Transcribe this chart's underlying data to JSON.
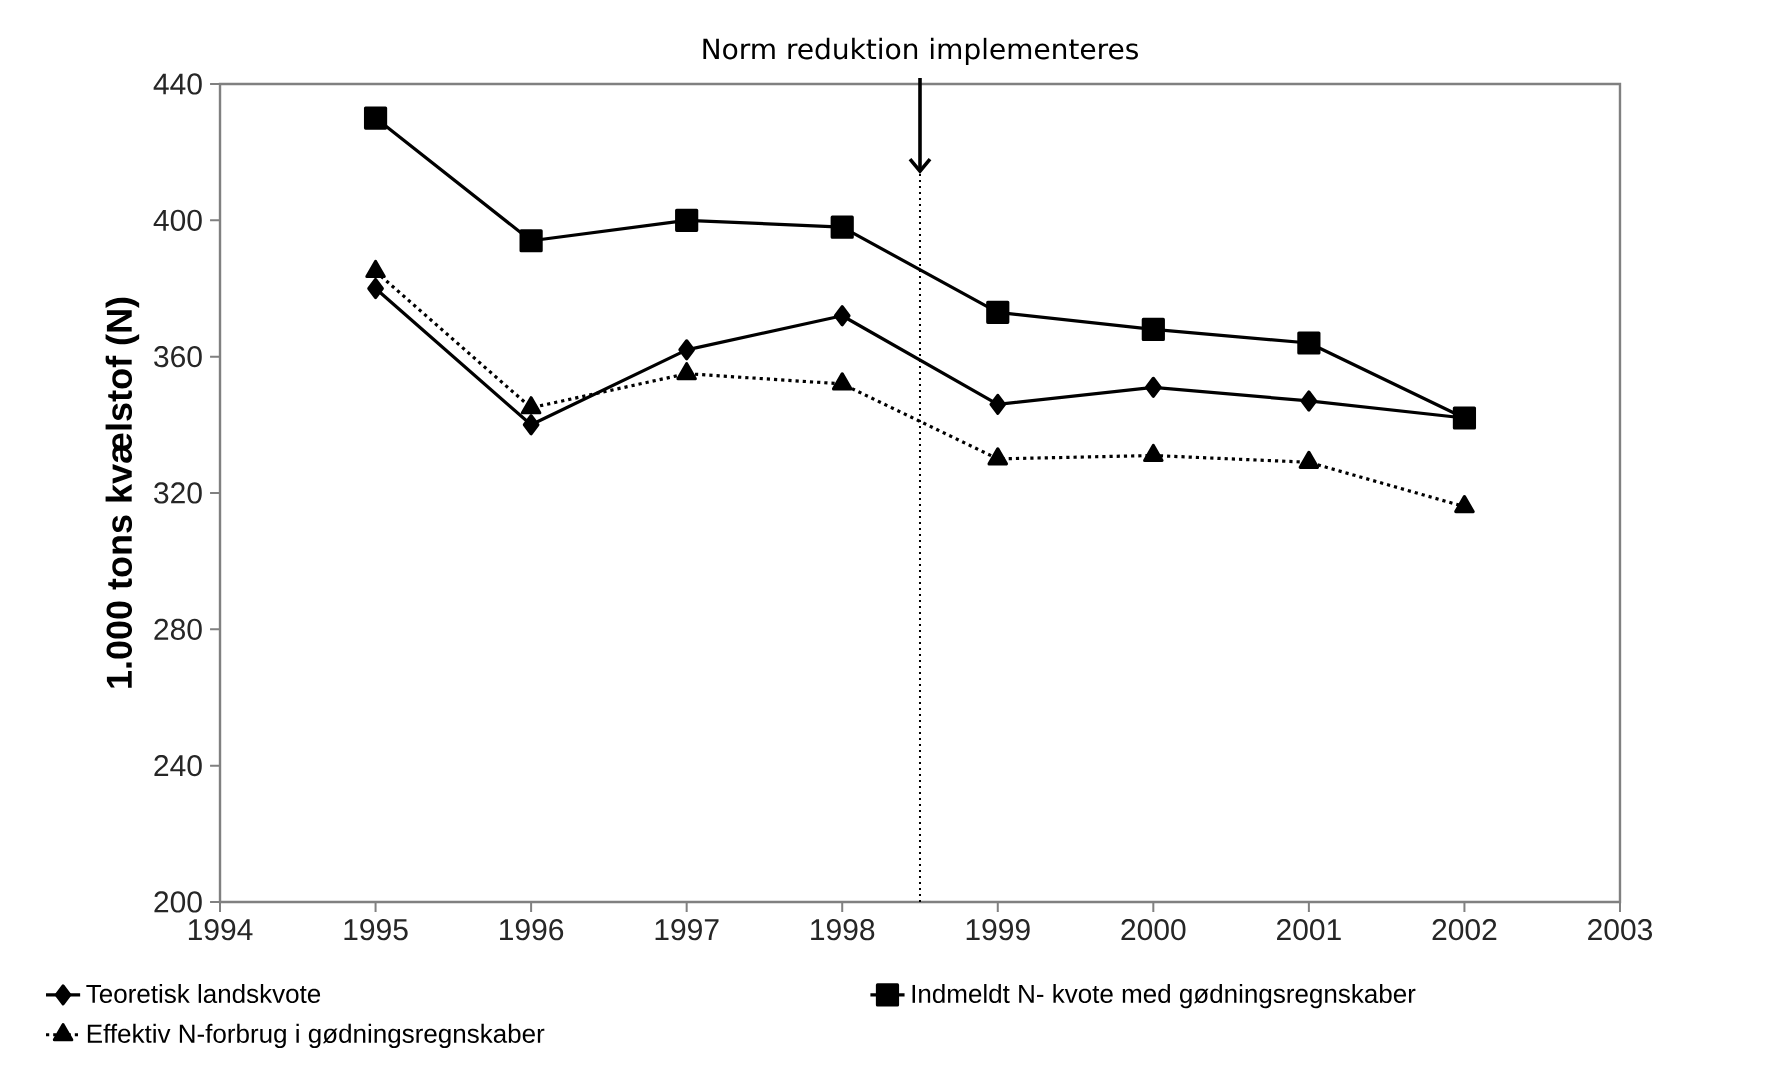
{
  "chart_data": {
    "type": "line",
    "ylabel": "1.000 tons kvælstof (N)",
    "x": [
      1995,
      1996,
      1997,
      1998,
      1999,
      2000,
      2001,
      2002
    ],
    "xlim": [
      1994,
      2003
    ],
    "xticks": [
      1994,
      1995,
      1996,
      1997,
      1998,
      1999,
      2000,
      2001,
      2002,
      2003
    ],
    "ylim": [
      200,
      440
    ],
    "yticks": [
      200,
      240,
      280,
      320,
      360,
      400,
      440
    ],
    "grid": false,
    "legend": "bottom",
    "ref_lines": [
      {
        "axis": "x",
        "value": 1998.5,
        "label": "Norm reduktion implementeres",
        "color": "#000000",
        "line_style": "dotted"
      }
    ],
    "series": [
      {
        "name": "Teoretisk landskvote",
        "color": "#000000",
        "marker": "diamond",
        "line_style": "solid",
        "values": [
          380,
          340,
          362,
          372,
          346,
          351,
          347,
          342
        ]
      },
      {
        "name": "Indmeldt N- kvote med gødningsregnskaber",
        "color": "#000000",
        "marker": "square",
        "line_style": "solid",
        "values": [
          430,
          394,
          400,
          398,
          373,
          368,
          364,
          342
        ]
      },
      {
        "name": "Effektiv N-forbrug i gødningsregnskaber",
        "color": "#000000",
        "marker": "triangle",
        "line_style": "dotted",
        "values": [
          385,
          345,
          355,
          352,
          330,
          331,
          329,
          316
        ]
      }
    ]
  }
}
